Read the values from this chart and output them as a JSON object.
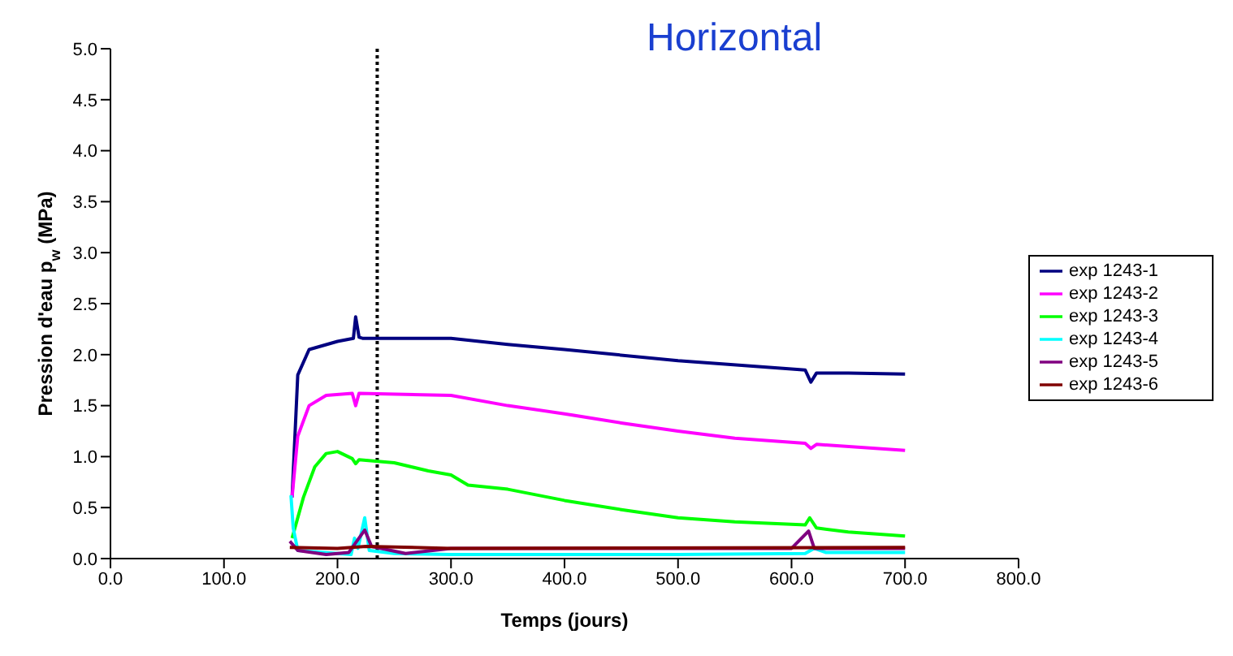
{
  "chart_data": {
    "type": "line",
    "title": "Horizontal",
    "xlabel": "Temps (jours)",
    "ylabel": "Pression d'eau p$_{w}$  (MPa)",
    "xlim": [
      0,
      800
    ],
    "xticks": [
      {
        "value": 0,
        "label": "0.0"
      },
      {
        "value": 100,
        "label": "100.0"
      },
      {
        "value": 200,
        "label": "200.0"
      },
      {
        "value": 300,
        "label": "300.0"
      },
      {
        "value": 400,
        "label": "400.0"
      },
      {
        "value": 500,
        "label": "500.0"
      },
      {
        "value": 600,
        "label": "600.0"
      },
      {
        "value": 700,
        "label": "700.0"
      },
      {
        "value": 800,
        "label": "800.0"
      }
    ],
    "ylim": [
      0,
      5
    ],
    "yticks": [
      {
        "value": 0,
        "label": "0.0"
      },
      {
        "value": 0.5,
        "label": "0.5"
      },
      {
        "value": 1,
        "label": "1.0"
      },
      {
        "value": 1.5,
        "label": "1.5"
      },
      {
        "value": 2,
        "label": "2.0"
      },
      {
        "value": 2.5,
        "label": "2.5"
      },
      {
        "value": 3,
        "label": "3.0"
      },
      {
        "value": 3.5,
        "label": "3.5"
      },
      {
        "value": 4,
        "label": "4.0"
      },
      {
        "value": 4.5,
        "label": "4.5"
      },
      {
        "value": 5,
        "label": "5.0"
      }
    ],
    "grid": false,
    "legend": "right",
    "marker": "none",
    "line_style": "solid",
    "ref_lines": [
      {
        "axis": "x",
        "value": 235,
        "color": "#000000",
        "line_style": "dotted"
      }
    ],
    "series": [
      {
        "name": "exp 1243-1",
        "color": "#000080",
        "x": [
          160,
          165,
          175,
          200,
          214,
          216,
          219,
          222,
          300,
          350,
          400,
          500,
          600,
          612,
          617,
          622,
          650,
          700
        ],
        "values": [
          0.6,
          1.8,
          2.05,
          2.13,
          2.16,
          2.37,
          2.17,
          2.16,
          2.16,
          2.1,
          2.05,
          1.94,
          1.86,
          1.85,
          1.73,
          1.82,
          1.82,
          1.81
        ]
      },
      {
        "name": "exp 1243-2",
        "color": "#ff00ff",
        "x": [
          160,
          165,
          175,
          190,
          213,
          216,
          219,
          300,
          350,
          400,
          450,
          500,
          550,
          612,
          617,
          622,
          700
        ],
        "values": [
          0.6,
          1.2,
          1.5,
          1.6,
          1.62,
          1.5,
          1.62,
          1.6,
          1.5,
          1.42,
          1.33,
          1.25,
          1.18,
          1.13,
          1.08,
          1.12,
          1.06
        ]
      },
      {
        "name": "exp 1243-3",
        "color": "#00ff00",
        "x": [
          160,
          170,
          180,
          190,
          200,
          213,
          216,
          219,
          250,
          280,
          300,
          315,
          350,
          400,
          450,
          500,
          550,
          612,
          616,
          622,
          650,
          700
        ],
        "values": [
          0.2,
          0.6,
          0.9,
          1.03,
          1.05,
          0.98,
          0.93,
          0.97,
          0.94,
          0.86,
          0.82,
          0.72,
          0.68,
          0.57,
          0.48,
          0.4,
          0.36,
          0.33,
          0.4,
          0.3,
          0.26,
          0.22
        ]
      },
      {
        "name": "exp 1243-4",
        "color": "#00ffff",
        "x": [
          159,
          161,
          165,
          200,
          212,
          215,
          218,
          224,
          228,
          250,
          300,
          500,
          612,
          620,
          630,
          700
        ],
        "values": [
          0.62,
          0.3,
          0.08,
          0.05,
          0.04,
          0.2,
          0.1,
          0.4,
          0.08,
          0.05,
          0.04,
          0.04,
          0.05,
          0.1,
          0.06,
          0.06
        ]
      },
      {
        "name": "exp 1243-5",
        "color": "#800080",
        "x": [
          158,
          165,
          190,
          210,
          224,
          230,
          260,
          300,
          600,
          615,
          620,
          700
        ],
        "values": [
          0.17,
          0.08,
          0.04,
          0.06,
          0.28,
          0.12,
          0.05,
          0.1,
          0.1,
          0.27,
          0.1,
          0.1
        ]
      },
      {
        "name": "exp 1243-6",
        "color": "#800000",
        "x": [
          158,
          200,
          225,
          300,
          700
        ],
        "values": [
          0.11,
          0.1,
          0.12,
          0.1,
          0.11
        ]
      }
    ]
  }
}
